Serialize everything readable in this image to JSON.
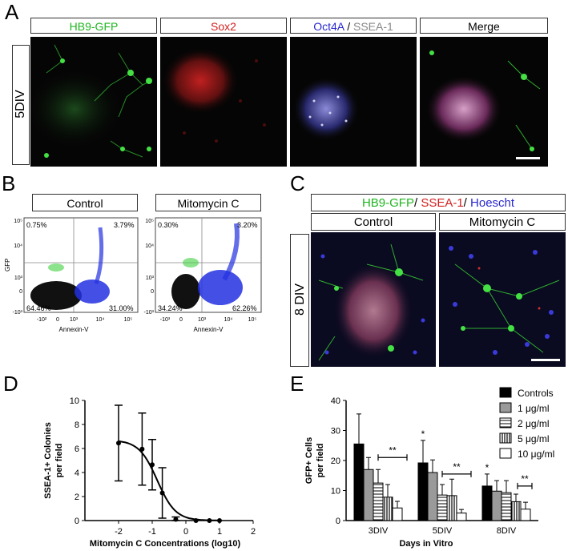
{
  "panelA": {
    "letter": "A",
    "row_label": "5DIV",
    "headers": {
      "gfp": "HB9-GFP",
      "sox2": "Sox2",
      "oct4a": "Oct4A",
      "sep": " / ",
      "ssea1": "SSEA-1",
      "merge": "Merge"
    }
  },
  "panelB": {
    "letter": "B",
    "plots": [
      {
        "title": "Control",
        "q_ul": "0.75%",
        "q_ur": "3.79%",
        "q_ll": "64.46%",
        "q_lr": "31.00%"
      },
      {
        "title": "Mitomycin C",
        "q_ul": "0.30%",
        "q_ur": "3.20%",
        "q_ll": "34.24%",
        "q_lr": "62.26%"
      }
    ],
    "ylabel": "GFP",
    "xlabel": "Annexin-V",
    "yticks": [
      "10⁵",
      "10⁴",
      "10³",
      "0",
      "-10³"
    ],
    "xticks": [
      "-10²",
      "0",
      "10³",
      "10⁴",
      "10⁵"
    ],
    "xticks_b": [
      "-10³",
      "0",
      "10³",
      "10⁴",
      "10⁵"
    ]
  },
  "panelC": {
    "letter": "C",
    "header_gfp": "HB9-GFP",
    "header_ssea": "SSEA-1",
    "header_hoe": "Hoescht",
    "sep": "/ ",
    "col1": "Control",
    "col2": "Mitomycin C",
    "row_label": "8 DIV"
  },
  "chart_data": [
    {
      "type": "line",
      "panel": "D",
      "ylabel": "SSEA-1+ Colonies per field",
      "xlabel": "Mitomycin C Concentrations (log10)",
      "xlim": [
        -3,
        2
      ],
      "ylim": [
        0,
        10
      ],
      "xticks": [
        "-2",
        "-1",
        "0",
        "1",
        "2"
      ],
      "yticks": [
        "0",
        "2",
        "4",
        "6",
        "8",
        "10"
      ],
      "points": [
        {
          "x": -2.0,
          "y": 6.45,
          "err": 3.15
        },
        {
          "x": -1.3,
          "y": 5.95,
          "err": 3.0
        },
        {
          "x": -1.0,
          "y": 4.65,
          "err": 2.1
        },
        {
          "x": -0.7,
          "y": 2.3,
          "err": 2.1
        },
        {
          "x": -0.3,
          "y": 0.1,
          "err": 0.2
        },
        {
          "x": 0.3,
          "y": 0.0,
          "err": 0.0
        },
        {
          "x": 0.7,
          "y": 0.0,
          "err": 0.0
        },
        {
          "x": 1.0,
          "y": 0.0,
          "err": 0.0
        }
      ]
    },
    {
      "type": "bar",
      "panel": "E",
      "ylabel": "GFP+ Cells per field",
      "xlabel": "Days in Vitro",
      "ylim": [
        0,
        40
      ],
      "yticks": [
        "0",
        "10",
        "20",
        "30",
        "40"
      ],
      "categories": [
        "3DIV",
        "5DIV",
        "8DIV"
      ],
      "series": [
        {
          "name": "Controls",
          "values": [
            25.5,
            19.2,
            11.5
          ],
          "errors": [
            10.0,
            7.5,
            4.0
          ]
        },
        {
          "name": "1 μg/ml",
          "values": [
            17.0,
            16.0,
            9.8
          ],
          "errors": [
            4.0,
            4.2,
            3.5
          ]
        },
        {
          "name": "2 μg/ml",
          "values": [
            12.5,
            8.5,
            9.3
          ],
          "errors": [
            4.5,
            3.5,
            4.0
          ]
        },
        {
          "name": "5 μg/ml",
          "values": [
            7.8,
            8.3,
            6.3
          ],
          "errors": [
            4.2,
            5.5,
            2.5
          ]
        },
        {
          "name": "10 μg/ml",
          "values": [
            4.2,
            2.5,
            3.8
          ],
          "errors": [
            2.2,
            1.2,
            2.3
          ]
        }
      ],
      "annotations": {
        "star": "*",
        "double": "**"
      }
    }
  ]
}
